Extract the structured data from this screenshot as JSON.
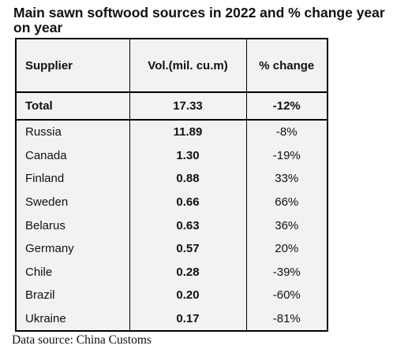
{
  "title": "Main sawn softwood sources in 2022 and % change year on year",
  "table": {
    "headers": [
      "Supplier",
      "Vol.(mil. cu.m)",
      "% change"
    ],
    "total": {
      "supplier": "Total",
      "volume": "17.33",
      "change": "-12%"
    },
    "rows": [
      {
        "supplier": "Russia",
        "volume": "11.89",
        "change": "-8%"
      },
      {
        "supplier": "Canada",
        "volume": "1.30",
        "change": "-19%"
      },
      {
        "supplier": "Finland",
        "volume": "0.88",
        "change": "33%"
      },
      {
        "supplier": "Sweden",
        "volume": "0.66",
        "change": "66%"
      },
      {
        "supplier": "Belarus",
        "volume": "0.63",
        "change": "36%"
      },
      {
        "supplier": "Germany",
        "volume": "0.57",
        "change": "20%"
      },
      {
        "supplier": "Chile",
        "volume": "0.28",
        "change": "-39%"
      },
      {
        "supplier": "Brazil",
        "volume": "0.20",
        "change": "-60%"
      },
      {
        "supplier": "Ukraine",
        "volume": "0.17",
        "change": "-81%"
      }
    ]
  },
  "footer": "Data source: China Customs"
}
